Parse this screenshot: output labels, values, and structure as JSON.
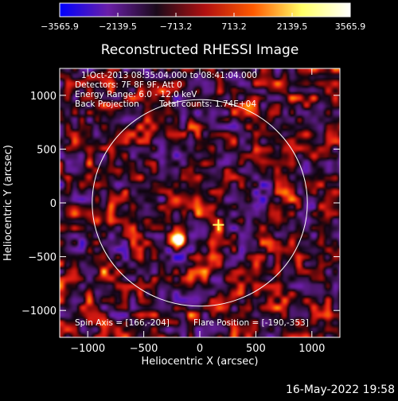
{
  "chart_data": {
    "type": "heatmap",
    "title": "Reconstructed RHESSI Image",
    "xlabel": "Heliocentric X (arcsec)",
    "ylabel": "Heliocentric Y (arcsec)",
    "xlim": [
      -1250,
      1250
    ],
    "ylim": [
      -1250,
      1250
    ],
    "xticks": [
      -1000,
      -500,
      0,
      500,
      1000
    ],
    "yticks": [
      -1000,
      -500,
      0,
      500,
      1000
    ],
    "xtick_labels": [
      "−1000",
      "−500",
      "0",
      "500",
      "1000"
    ],
    "ytick_labels": [
      "−1000",
      "−500",
      "0",
      "500",
      "1000"
    ],
    "colorbar": {
      "ticks": [
        -3565.9,
        -2139.5,
        -713.2,
        713.2,
        2139.5,
        3565.9
      ],
      "tick_labels": [
        "−3565.9",
        "−2139.5",
        "−713.2",
        "713.2",
        "2139.5",
        "3565.9"
      ],
      "range": [
        -3565.9,
        3565.9
      ],
      "colors": [
        "#0000ff",
        "#6a1fa8",
        "#1a0a1a",
        "#b01010",
        "#ff5a00",
        "#ffff66",
        "#ffffff"
      ]
    },
    "limb_circle": {
      "center": [
        0,
        0
      ],
      "radius_arcsec": 960,
      "color": "#ffffff"
    },
    "flare_marker": {
      "x": 166,
      "y": -204,
      "color": "#ffff66",
      "symbol": "+"
    },
    "bright_source": {
      "x": -190,
      "y": -353,
      "peak": 3565.9
    },
    "annotations": {
      "time_range": "1-Oct-2013 08:35:04.000 to 08:41:04.000",
      "detectors": "Detectors: 7F 8F 9F, Att 0",
      "energy": "Energy Range: 6.0 - 12.0 keV",
      "method": "Back Projection",
      "counts": "Total counts: 1.74E+04",
      "spin_axis": "Spin Axis = [166,-204]",
      "flare_position": "Flare Position = [-190,-353]"
    }
  },
  "footer": {
    "timestamp": "16-May-2022 19:58"
  }
}
